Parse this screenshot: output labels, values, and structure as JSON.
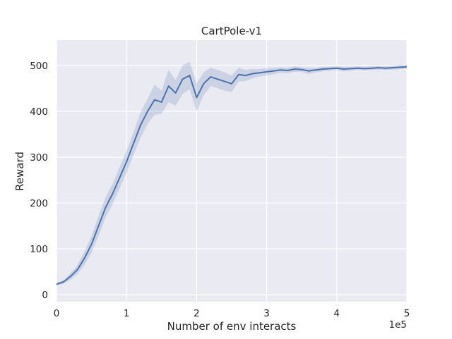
{
  "chart_data": {
    "type": "line",
    "title": "CartPole-v1",
    "xlabel": "Number of env interacts",
    "ylabel": "Reward",
    "x_offset_label": "1e5",
    "xlim": [
      0,
      500000
    ],
    "ylim": [
      -15,
      555
    ],
    "x_ticks": [
      0,
      100000,
      200000,
      300000,
      400000,
      500000
    ],
    "x_tick_labels": [
      "0",
      "1",
      "2",
      "3",
      "4",
      "5"
    ],
    "y_ticks": [
      0,
      100,
      200,
      300,
      400,
      500
    ],
    "y_tick_labels": [
      "0",
      "100",
      "200",
      "300",
      "400",
      "500"
    ],
    "grid": true,
    "legend": "none",
    "colors": {
      "line": "#4c72b0",
      "band": "#4c72b0",
      "plot_bg": "#eaeaf2",
      "grid": "#ffffff"
    },
    "series": [
      {
        "x": [
          0,
          10000,
          20000,
          30000,
          40000,
          50000,
          60000,
          70000,
          80000,
          90000,
          100000,
          110000,
          120000,
          130000,
          140000,
          150000,
          160000,
          170000,
          180000,
          190000,
          200000,
          210000,
          220000,
          230000,
          240000,
          250000,
          260000,
          270000,
          280000,
          290000,
          300000,
          310000,
          320000,
          330000,
          340000,
          350000,
          360000,
          370000,
          380000,
          390000,
          400000,
          410000,
          420000,
          430000,
          440000,
          450000,
          460000,
          470000,
          480000,
          490000,
          500000
        ],
        "y": [
          23,
          28,
          40,
          55,
          80,
          110,
          150,
          190,
          220,
          255,
          290,
          330,
          370,
          400,
          425,
          420,
          455,
          440,
          470,
          478,
          430,
          460,
          475,
          470,
          465,
          460,
          480,
          478,
          482,
          484,
          486,
          488,
          490,
          489,
          492,
          491,
          488,
          490,
          492,
          493,
          494,
          492,
          493,
          494,
          493,
          494,
          495,
          494,
          495,
          496,
          497
        ],
        "lower": [
          20,
          24,
          33,
          45,
          65,
          92,
          128,
          168,
          198,
          232,
          266,
          305,
          342,
          373,
          392,
          395,
          420,
          412,
          438,
          448,
          400,
          435,
          455,
          450,
          445,
          442,
          465,
          466,
          472,
          476,
          478,
          481,
          484,
          483,
          486,
          486,
          481,
          485,
          487,
          489,
          490,
          487,
          489,
          490,
          489,
          490,
          491,
          490,
          491,
          492,
          493
        ],
        "upper": [
          26,
          32,
          47,
          65,
          95,
          128,
          172,
          212,
          242,
          278,
          314,
          355,
          398,
          427,
          458,
          445,
          490,
          468,
          500,
          508,
          460,
          485,
          495,
          490,
          485,
          478,
          495,
          490,
          492,
          492,
          494,
          495,
          496,
          495,
          498,
          496,
          495,
          495,
          497,
          497,
          498,
          497,
          497,
          498,
          497,
          498,
          499,
          498,
          499,
          500,
          501
        ]
      }
    ]
  }
}
